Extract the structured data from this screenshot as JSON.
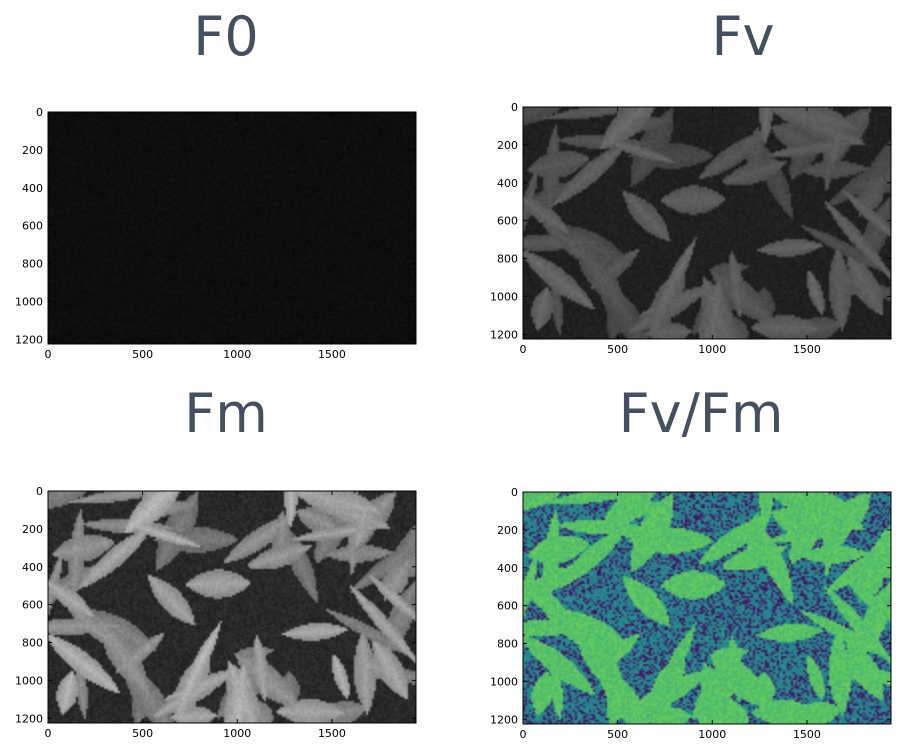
{
  "chart_data": [
    {
      "type": "heatmap",
      "title": "F0",
      "colormap": "gray",
      "image_width": 1944,
      "image_height": 1225,
      "xlim": [
        0,
        1944
      ],
      "ylim": [
        1225,
        0
      ],
      "xticks": [
        0,
        500,
        1000,
        1500
      ],
      "yticks": [
        0,
        200,
        400,
        600,
        800,
        1000,
        1200
      ],
      "xticklabels": [
        "0",
        "500",
        "1000",
        "1500"
      ],
      "yticklabels": [
        "0",
        "200",
        "400",
        "600",
        "800",
        "1000",
        "1200"
      ]
    },
    {
      "type": "heatmap",
      "title": "Fv",
      "colormap": "gray",
      "image_width": 1944,
      "image_height": 1225,
      "xlim": [
        0,
        1944
      ],
      "ylim": [
        1225,
        0
      ],
      "xticks": [
        0,
        500,
        1000,
        1500
      ],
      "yticks": [
        0,
        200,
        400,
        600,
        800,
        1000,
        1200
      ],
      "xticklabels": [
        "0",
        "500",
        "1000",
        "1500"
      ],
      "yticklabels": [
        "0",
        "200",
        "400",
        "600",
        "800",
        "1000",
        "1200"
      ]
    },
    {
      "type": "heatmap",
      "title": "Fm",
      "colormap": "gray",
      "image_width": 1944,
      "image_height": 1225,
      "xlim": [
        0,
        1944
      ],
      "ylim": [
        1225,
        0
      ],
      "xticks": [
        0,
        500,
        1000,
        1500
      ],
      "yticks": [
        0,
        200,
        400,
        600,
        800,
        1000,
        1200
      ],
      "xticklabels": [
        "0",
        "500",
        "1000",
        "1500"
      ],
      "yticklabels": [
        "0",
        "200",
        "400",
        "600",
        "800",
        "1000",
        "1200"
      ]
    },
    {
      "type": "heatmap",
      "title": "Fv/Fm",
      "colormap": "viridis",
      "image_width": 1944,
      "image_height": 1225,
      "xlim": [
        0,
        1944
      ],
      "ylim": [
        1225,
        0
      ],
      "xticks": [
        0,
        500,
        1000,
        1500
      ],
      "yticks": [
        0,
        200,
        400,
        600,
        800,
        1000,
        1200
      ],
      "xticklabels": [
        "0",
        "500",
        "1000",
        "1500"
      ],
      "yticklabels": [
        "0",
        "200",
        "400",
        "600",
        "800",
        "1000",
        "1200"
      ]
    }
  ]
}
